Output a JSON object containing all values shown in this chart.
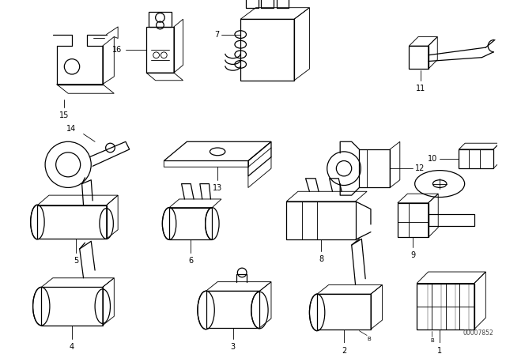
{
  "background_color": "#ffffff",
  "part_number_text": "00007852",
  "fig_width": 6.4,
  "fig_height": 4.48,
  "dpi": 100,
  "lw": 0.9
}
